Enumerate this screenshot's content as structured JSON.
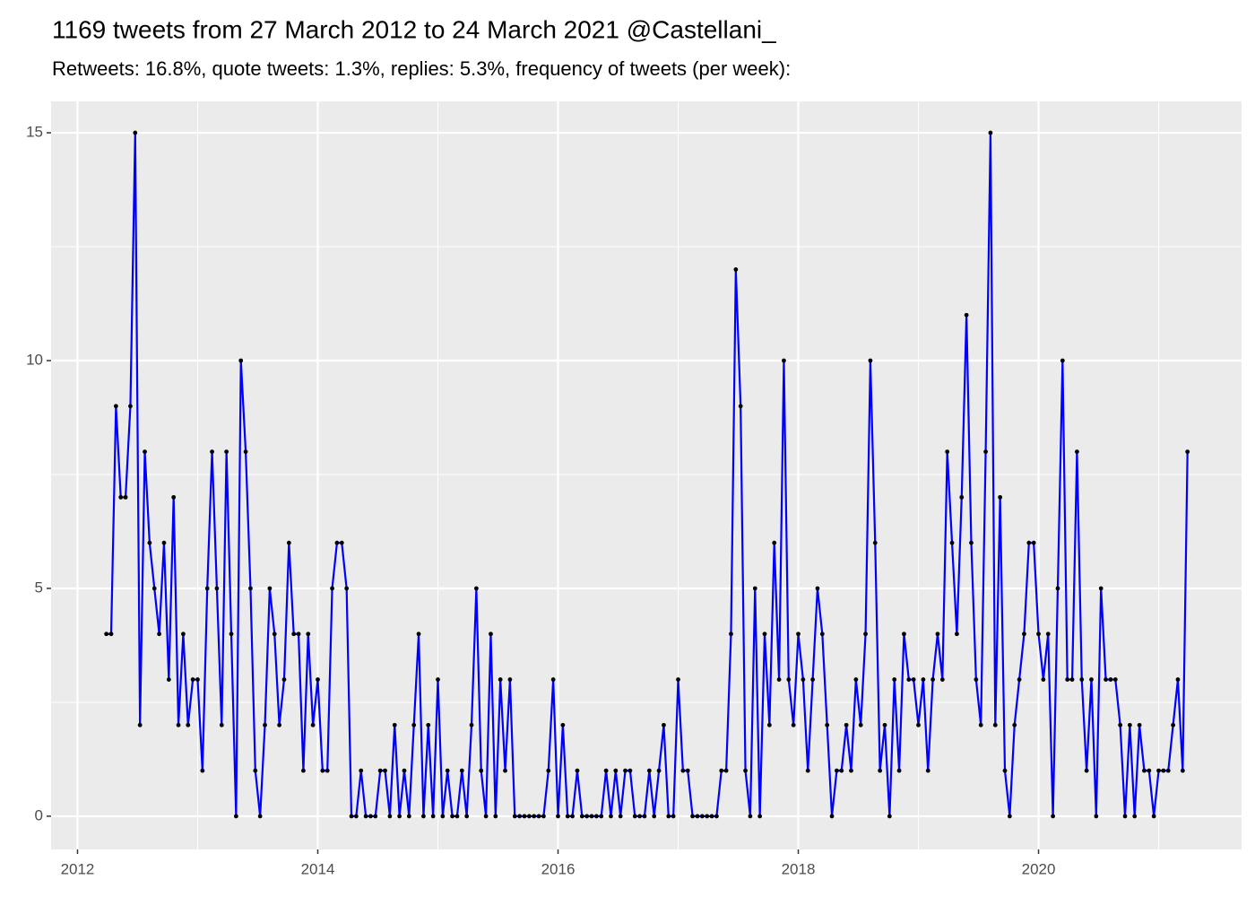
{
  "chart_data": {
    "type": "line",
    "title": "1169 tweets from 27 March 2012 to 24 March 2021 @Castellani_",
    "subtitle": "Retweets: 16.8%, quote tweets: 1.3%, replies: 5.3%, frequency of tweets (per week):",
    "x": [
      2012.24,
      2012.28,
      2012.32,
      2012.36,
      2012.4,
      2012.44,
      2012.48,
      2012.52,
      2012.56,
      2012.6,
      2012.64,
      2012.68,
      2012.72,
      2012.76,
      2012.8,
      2012.84,
      2012.88,
      2012.92,
      2012.96,
      2013,
      2013.04,
      2013.08,
      2013.12,
      2013.16,
      2013.2,
      2013.24,
      2013.28,
      2013.32,
      2013.36,
      2013.4,
      2013.44,
      2013.48,
      2013.52,
      2013.56,
      2013.6,
      2013.64,
      2013.68,
      2013.72,
      2013.76,
      2013.8,
      2013.84,
      2013.88,
      2013.92,
      2013.96,
      2014,
      2014.04,
      2014.08,
      2014.12,
      2014.16,
      2014.2,
      2014.24,
      2014.28,
      2014.32,
      2014.36,
      2014.4,
      2014.44,
      2014.48,
      2014.52,
      2014.56,
      2014.6,
      2014.64,
      2014.68,
      2014.72,
      2014.76,
      2014.8,
      2014.84,
      2014.88,
      2014.92,
      2014.96,
      2015,
      2015.04,
      2015.08,
      2015.12,
      2015.16,
      2015.2,
      2015.24,
      2015.28,
      2015.32,
      2015.36,
      2015.4,
      2015.44,
      2015.48,
      2015.52,
      2015.56,
      2015.6,
      2015.64,
      2015.68,
      2015.72,
      2015.76,
      2015.8,
      2015.84,
      2015.88,
      2015.92,
      2015.96,
      2016,
      2016.04,
      2016.08,
      2016.12,
      2016.16,
      2016.2,
      2016.24,
      2016.28,
      2016.32,
      2016.36,
      2016.4,
      2016.44,
      2016.48,
      2016.52,
      2016.56,
      2016.6,
      2016.64,
      2016.68,
      2016.72,
      2016.76,
      2016.8,
      2016.84,
      2016.88,
      2016.92,
      2016.96,
      2017,
      2017.04,
      2017.08,
      2017.12,
      2017.16,
      2017.2,
      2017.24,
      2017.28,
      2017.32,
      2017.36,
      2017.4,
      2017.44,
      2017.48,
      2017.52,
      2017.56,
      2017.6,
      2017.64,
      2017.68,
      2017.72,
      2017.76,
      2017.8,
      2017.84,
      2017.88,
      2017.92,
      2017.96,
      2018,
      2018.04,
      2018.08,
      2018.12,
      2018.16,
      2018.2,
      2018.24,
      2018.28,
      2018.32,
      2018.36,
      2018.4,
      2018.44,
      2018.48,
      2018.52,
      2018.56,
      2018.6,
      2018.64,
      2018.68,
      2018.72,
      2018.76,
      2018.8,
      2018.84,
      2018.88,
      2018.92,
      2018.96,
      2019,
      2019.04,
      2019.08,
      2019.12,
      2019.16,
      2019.2,
      2019.24,
      2019.28,
      2019.32,
      2019.36,
      2019.4,
      2019.44,
      2019.48,
      2019.52,
      2019.56,
      2019.6,
      2019.64,
      2019.68,
      2019.72,
      2019.76,
      2019.8,
      2019.84,
      2019.88,
      2019.92,
      2019.96,
      2020,
      2020.04,
      2020.08,
      2020.12,
      2020.16,
      2020.2,
      2020.24,
      2020.28,
      2020.32,
      2020.36,
      2020.4,
      2020.44,
      2020.48,
      2020.52,
      2020.56,
      2020.6,
      2020.64,
      2020.68,
      2020.72,
      2020.76,
      2020.8,
      2020.84,
      2020.88,
      2020.92,
      2020.96,
      2021,
      2021.04,
      2021.08,
      2021.12,
      2021.16,
      2021.2,
      2021.24
    ],
    "series": [
      {
        "color": "#0000FF",
        "values": [
          4,
          4,
          9,
          7,
          7,
          9,
          15,
          2,
          8,
          6,
          5,
          4,
          6,
          3,
          7,
          2,
          4,
          2,
          3,
          3,
          1,
          5,
          8,
          5,
          2,
          8,
          4,
          0,
          10,
          8,
          5,
          1,
          0,
          2,
          5,
          4,
          2,
          3,
          6,
          4,
          4,
          1,
          4,
          2,
          3,
          1,
          1,
          5,
          6,
          6,
          5,
          0,
          0,
          1,
          0,
          0,
          0,
          1,
          1,
          0,
          2,
          0,
          1,
          0,
          2,
          4,
          0,
          2,
          0,
          3,
          0,
          1,
          0,
          0,
          1,
          0,
          2,
          5,
          1,
          0,
          4,
          0,
          3,
          1,
          3,
          0,
          0,
          0,
          0,
          0,
          0,
          0,
          1,
          3,
          0,
          2,
          0,
          0,
          1,
          0,
          0,
          0,
          0,
          0,
          1,
          0,
          1,
          0,
          1,
          1,
          0,
          0,
          0,
          1,
          0,
          1,
          2,
          0,
          0,
          3,
          1,
          1,
          0,
          0,
          0,
          0,
          0,
          0,
          1,
          1,
          4,
          12,
          9,
          1,
          0,
          5,
          0,
          4,
          2,
          6,
          3,
          10,
          3,
          2,
          4,
          3,
          1,
          3,
          5,
          4,
          2,
          0,
          1,
          1,
          2,
          1,
          3,
          2,
          4,
          10,
          6,
          1,
          2,
          0,
          3,
          1,
          4,
          3,
          3,
          2,
          3,
          1,
          3,
          4,
          3,
          8,
          6,
          4,
          7,
          11,
          6,
          3,
          2,
          8,
          15,
          2,
          7,
          1,
          0,
          2,
          3,
          4,
          6,
          6,
          4,
          3,
          4,
          0,
          5,
          10,
          3,
          3,
          8,
          3,
          1,
          3,
          0,
          5,
          3,
          3,
          3,
          2,
          0,
          2,
          0,
          2,
          1,
          1,
          0,
          1,
          1,
          1,
          2,
          3,
          1,
          8
        ]
      }
    ],
    "point_color": "#000000",
    "xlim": [
      2011.78,
      2021.69
    ],
    "xticks": [
      2012,
      2014,
      2016,
      2018,
      2020
    ],
    "minor_xticks": [
      2013,
      2015,
      2017,
      2019,
      2021
    ],
    "ylim": [
      -0.73,
      15.69
    ],
    "yticks": [
      0,
      5,
      10,
      15
    ],
    "minor_yticks": [
      2.5,
      7.5,
      12.5
    ],
    "grid": true
  }
}
